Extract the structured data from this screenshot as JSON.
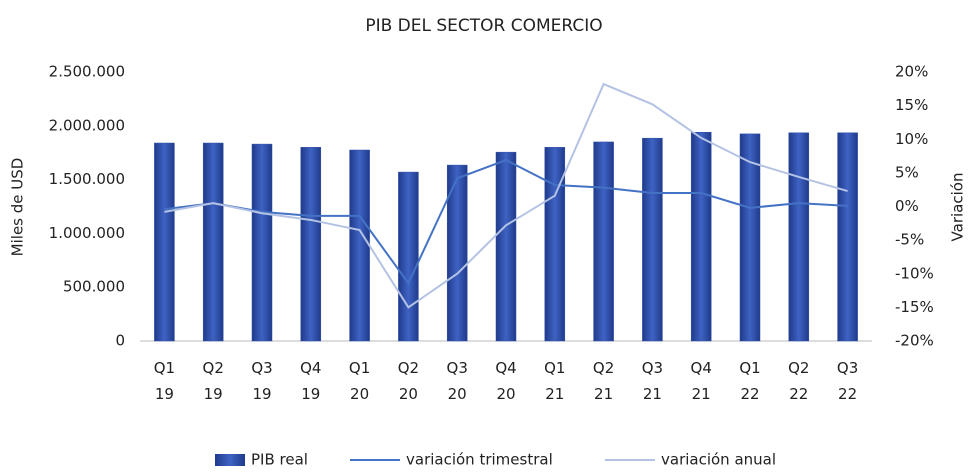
{
  "chart_data": {
    "type": "bar_line",
    "title": "PIB DEL SECTOR COMERCIO",
    "ylabel": "Miles de USD",
    "y2label": "Variación",
    "categories": [
      "Q1 19",
      "Q2 19",
      "Q3 19",
      "Q4 19",
      "Q1 20",
      "Q2 20",
      "Q3 20",
      "Q4 20",
      "Q1 21",
      "Q2 21",
      "Q3 21",
      "Q4 21",
      "Q1 22",
      "Q2 22",
      "Q3 22"
    ],
    "series": [
      {
        "name": "PIB real",
        "type": "bar",
        "color": "#2f4fa8",
        "values": [
          1840000,
          1840000,
          1830000,
          1800000,
          1775000,
          1570000,
          1635000,
          1755000,
          1800000,
          1850000,
          1885000,
          1940000,
          1925000,
          1935000,
          1935000
        ]
      },
      {
        "name": "variación trimestral",
        "type": "line",
        "axis": "y2",
        "color": "#4472c4",
        "values": [
          -0.4,
          0.5,
          -0.8,
          -1.4,
          -1.4,
          -11.4,
          4.2,
          6.9,
          3.2,
          2.8,
          2.0,
          2.0,
          -0.2,
          0.5,
          0.1
        ]
      },
      {
        "name": "variación anual",
        "type": "line",
        "axis": "y2",
        "color": "#b4c3e4",
        "values": [
          -0.8,
          0.5,
          -1.0,
          -2.0,
          -3.5,
          -15.0,
          -10.0,
          -2.8,
          1.6,
          18.2,
          15.2,
          10.2,
          6.6,
          4.4,
          2.3
        ]
      }
    ],
    "ylim": [
      0,
      2500000
    ],
    "yticks": [
      0,
      {
        "value": 500000,
        "label": "500.000"
      },
      {
        "value": 1000000,
        "label": "1.000.000"
      },
      {
        "value": 1500000,
        "label": "1.500.000"
      },
      {
        "value": 2000000,
        "label": "2.000.000"
      },
      {
        "value": 2500000,
        "label": "2.500.000"
      }
    ],
    "y2lim": [
      -20,
      20
    ],
    "y2ticks": [
      {
        "value": -20,
        "label": "-20%"
      },
      {
        "value": -15,
        "label": "-15%"
      },
      {
        "value": -10,
        "label": "-10%"
      },
      {
        "value": -5,
        "label": "-5%"
      },
      {
        "value": 0,
        "label": "0%"
      },
      {
        "value": 5,
        "label": "5%"
      },
      {
        "value": 10,
        "label": "10%"
      },
      {
        "value": 15,
        "label": "15%"
      },
      {
        "value": 20,
        "label": "20%"
      }
    ],
    "legend": "bottom"
  }
}
